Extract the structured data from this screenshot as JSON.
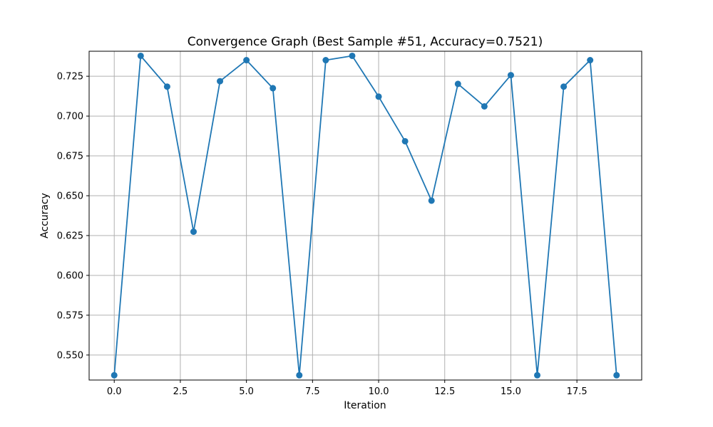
{
  "chart_data": {
    "type": "line",
    "title": "Convergence Graph (Best Sample #51, Accuracy=0.7521)",
    "xlabel": "Iteration",
    "ylabel": "Accuracy",
    "xlim": [
      -0.95,
      19.95
    ],
    "ylim": [
      0.5343,
      0.7407
    ],
    "x_ticks": [
      0.0,
      2.5,
      5.0,
      7.5,
      10.0,
      12.5,
      15.0,
      17.5
    ],
    "x_tick_labels": [
      "0.0",
      "2.5",
      "5.0",
      "7.5",
      "10.0",
      "12.5",
      "15.0",
      "17.5"
    ],
    "y_ticks": [
      0.55,
      0.575,
      0.6,
      0.625,
      0.65,
      0.675,
      0.7,
      0.725
    ],
    "y_tick_labels": [
      "0.550",
      "0.575",
      "0.600",
      "0.625",
      "0.650",
      "0.675",
      "0.700",
      "0.725"
    ],
    "grid": true,
    "color": "#1f77b4",
    "marker": "circle",
    "series": [
      {
        "x": [
          0,
          1,
          2,
          3,
          4,
          5,
          6,
          7,
          8,
          9,
          10,
          11,
          12,
          13,
          14,
          15,
          16,
          17,
          18,
          19
        ],
        "values": [
          0.5373,
          0.7378,
          0.7185,
          0.6274,
          0.7219,
          0.7351,
          0.7175,
          0.5373,
          0.7351,
          0.7378,
          0.7122,
          0.6842,
          0.6469,
          0.7202,
          0.7061,
          0.7257,
          0.5373,
          0.7185,
          0.7351,
          0.5373
        ]
      }
    ]
  }
}
